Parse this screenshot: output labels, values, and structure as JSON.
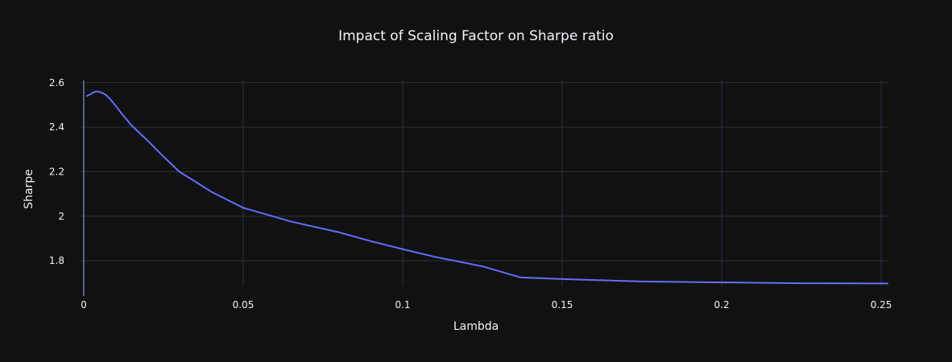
{
  "chart_data": {
    "type": "line",
    "title": "Impact of Scaling Factor on Sharpe ratio",
    "xlabel": "Lambda",
    "ylabel": "Sharpe",
    "xlim": [
      -0.001,
      0.252
    ],
    "ylim": [
      1.685,
      2.61
    ],
    "xticks": [
      0,
      0.05,
      0.1,
      0.15,
      0.2,
      0.25
    ],
    "xtick_labels": [
      "0",
      "0.05",
      "0.1",
      "0.15",
      "0.2",
      "0.25"
    ],
    "yticks": [
      1.8,
      2.0,
      2.2,
      2.4,
      2.6
    ],
    "ytick_labels": [
      "1.8",
      "2",
      "2.2",
      "2.4",
      "2.6"
    ],
    "grid": true,
    "background": "#111111",
    "series": [
      {
        "color": "#636efa",
        "x": [
          0.001,
          0.002,
          0.003,
          0.004,
          0.005,
          0.006,
          0.007,
          0.008,
          0.009,
          0.01,
          0.012,
          0.015,
          0.02,
          0.025,
          0.03,
          0.04,
          0.05,
          0.065,
          0.08,
          0.09,
          0.1,
          0.11,
          0.125,
          0.137,
          0.15,
          0.175,
          0.2,
          0.225,
          0.252
        ],
        "y": [
          2.54,
          2.547,
          2.556,
          2.561,
          2.558,
          2.553,
          2.544,
          2.531,
          2.514,
          2.496,
          2.459,
          2.408,
          2.34,
          2.268,
          2.2,
          2.11,
          2.038,
          1.976,
          1.928,
          1.888,
          1.852,
          1.818,
          1.775,
          1.725,
          1.718,
          1.707,
          1.703,
          1.699,
          1.698
        ]
      }
    ]
  }
}
